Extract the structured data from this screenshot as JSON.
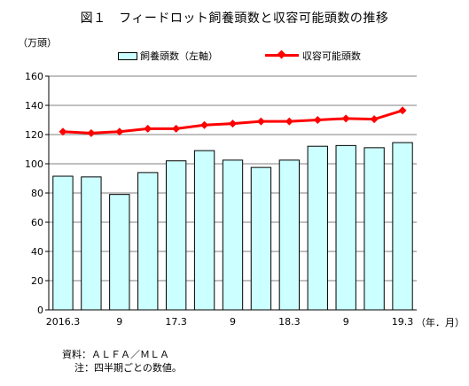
{
  "title": "図１　フィードロット飼養頭数と収容可能頭数の推移",
  "y_unit": "（万頭）",
  "x_unit": "（年．月）",
  "notes": [
    "資料：ＡＬＦＡ／ＭＬＡ",
    "注：四半期ごとの数値。"
  ],
  "colors": {
    "bar_fill": "#ccffff",
    "line": "#ff0000",
    "grid": "#808080"
  },
  "chart_data": {
    "type": "bar",
    "categories": [
      "2016.3",
      "",
      "9",
      "",
      "17.3",
      "",
      "9",
      "",
      "18.3",
      "",
      "9",
      "",
      "19.3"
    ],
    "series": [
      {
        "name": "飼養頭数（左軸）",
        "type": "bar",
        "values": [
          91.5,
          91,
          79,
          94,
          102,
          109,
          102.5,
          97.5,
          102.5,
          112,
          112.5,
          111,
          114.5
        ]
      },
      {
        "name": "収容可能頭数",
        "type": "line",
        "values": [
          122,
          121,
          122,
          124,
          124,
          126.5,
          127.5,
          129,
          129,
          130,
          131,
          130.5,
          136.5
        ]
      }
    ],
    "yticks": [
      0,
      20,
      40,
      60,
      80,
      100,
      120,
      140,
      160
    ],
    "ylim": [
      0,
      160
    ],
    "grid": true,
    "legend": "top"
  }
}
